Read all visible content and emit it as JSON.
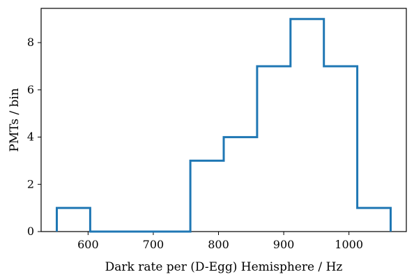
{
  "chart_data": {
    "type": "step-histogram",
    "title": "",
    "xlabel": "Dark rate per (D-Egg) Hemisphere / Hz",
    "ylabel": "PMTs / bin",
    "bin_edges": [
      552,
      603.2,
      654.4,
      705.6,
      756.8,
      808,
      859.2,
      910.4,
      961.6,
      1012.8,
      1064
    ],
    "counts": [
      1,
      0,
      0,
      0,
      3,
      4,
      7,
      9,
      7,
      1
    ],
    "xlim": [
      528,
      1088
    ],
    "ylim": [
      0,
      9.45
    ],
    "xticks": [
      600,
      700,
      800,
      900,
      1000
    ],
    "xtick_labels": [
      "600",
      "700",
      "800",
      "900",
      "1000"
    ],
    "yticks": [
      0,
      2,
      4,
      6,
      8
    ],
    "ytick_labels": [
      "0",
      "2",
      "4",
      "6",
      "8"
    ],
    "grid": false,
    "colors": {
      "line": "#1f77b4"
    }
  }
}
